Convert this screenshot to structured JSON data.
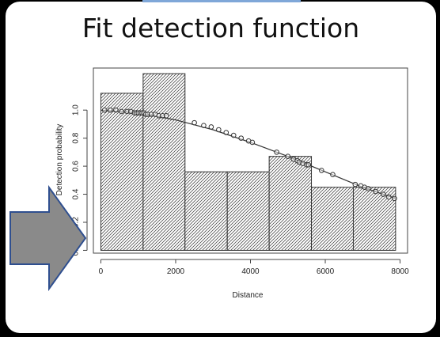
{
  "slide": {
    "title": "Fit detection function",
    "arrow_color": "#8a8a8a",
    "arrow_outline_color": "#2f4f8f",
    "accent_color": "#7fa7d8"
  },
  "chart_data": {
    "type": "bar",
    "xlabel": "Distance",
    "ylabel": "Detection probability",
    "xlim": [
      -200,
      8200
    ],
    "ylim": [
      -0.02,
      1.3
    ],
    "xticks": [
      0,
      2000,
      4000,
      6000,
      8000
    ],
    "xtick_labels": [
      "0",
      "2000",
      "4000",
      "6000",
      "8000"
    ],
    "yticks": [
      0.0,
      0.2,
      0.4,
      0.6,
      0.8,
      1.0
    ],
    "ytick_labels": [
      "0.0",
      "0.2",
      "0.4",
      "0.6",
      "0.8",
      "1.0"
    ],
    "grid": false,
    "histogram": {
      "bin_edges": [
        0,
        1130,
        2250,
        3380,
        4500,
        5630,
        6750,
        7880
      ],
      "values": [
        1.12,
        1.26,
        0.56,
        0.56,
        0.67,
        0.45,
        0.45
      ],
      "fill": "diagonal-hatch"
    },
    "fitted_curve": {
      "x": [
        0,
        1000,
        2000,
        3000,
        4000,
        5000,
        6000,
        7000,
        7880
      ],
      "y": [
        1.0,
        0.98,
        0.93,
        0.86,
        0.77,
        0.67,
        0.56,
        0.45,
        0.37
      ]
    },
    "points": {
      "x": [
        100,
        250,
        400,
        550,
        700,
        800,
        900,
        950,
        1000,
        1050,
        1100,
        1150,
        1200,
        1250,
        1350,
        1450,
        1550,
        1650,
        1750,
        2500,
        2750,
        2950,
        3150,
        3350,
        3550,
        3750,
        3950,
        4050,
        4700,
        5000,
        5150,
        5250,
        5300,
        5400,
        5500,
        5550,
        5900,
        6200,
        6800,
        6950,
        7050,
        7150,
        7350,
        7550,
        7700,
        7850
      ],
      "y": [
        1.0,
        1.0,
        1.0,
        0.99,
        0.99,
        0.99,
        0.98,
        0.98,
        0.98,
        0.98,
        0.98,
        0.98,
        0.97,
        0.97,
        0.97,
        0.97,
        0.96,
        0.96,
        0.96,
        0.91,
        0.89,
        0.88,
        0.86,
        0.84,
        0.82,
        0.8,
        0.78,
        0.77,
        0.7,
        0.67,
        0.65,
        0.64,
        0.63,
        0.62,
        0.61,
        0.61,
        0.57,
        0.54,
        0.47,
        0.46,
        0.45,
        0.44,
        0.42,
        0.4,
        0.38,
        0.37
      ]
    }
  }
}
